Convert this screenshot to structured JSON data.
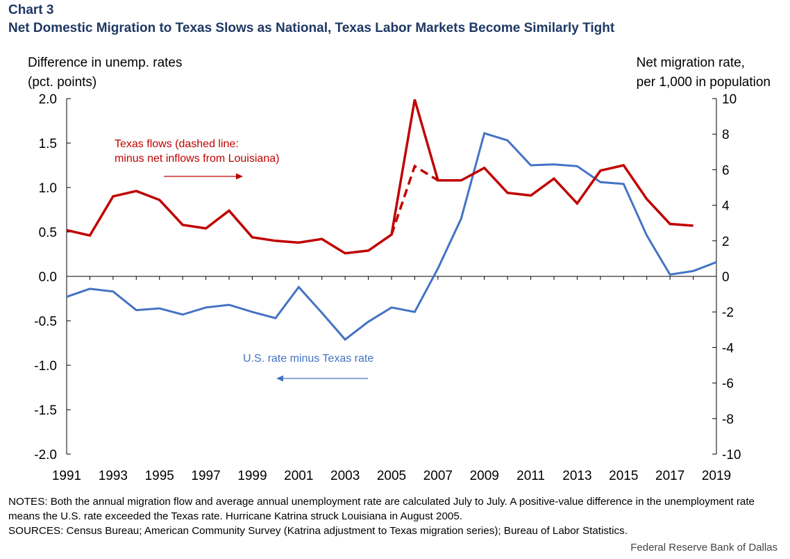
{
  "header": {
    "chart_number": "Chart 3",
    "title": "Net Domestic Migration to Texas Slows as National, Texas Labor Markets Become Similarly Tight"
  },
  "axis_labels": {
    "left_line1": "Difference in unemp. rates",
    "left_line2": "(pct. points)",
    "right_line1": "Net migration rate,",
    "right_line2": "per 1,000 in population"
  },
  "annotations": {
    "texas_line1": "Texas flows (dashed line:",
    "texas_line2": "minus net inflows from Louisiana)",
    "us_label": "U.S.  rate minus Texas rate"
  },
  "notes": {
    "notes_text": "NOTES: Both the annual migration flow and average annual unemployment  rate are calculated July to July. A positive-value difference in the unemployment  rate means the U.S. rate exceeded the Texas rate. Hurricane Katrina struck Louisiana in August 2005.",
    "sources_text": "SOURCES: Census Bureau; American Community Survey (Katrina adjustment to Texas migration series); Bureau of Labor Statistics."
  },
  "credit": "Federal Reserve Bank of Dallas",
  "colors": {
    "us_series": "#4472c4",
    "texas_series": "#c00000",
    "title": "#1f3864"
  },
  "chart_data": {
    "type": "line",
    "title": "Net Domestic Migration to Texas Slows as National, Texas Labor Markets Become Similarly Tight",
    "xlim": [
      1991,
      2019
    ],
    "x_tick_labels": [
      "1991",
      "1993",
      "1995",
      "1997",
      "1999",
      "2001",
      "2003",
      "2005",
      "2007",
      "2009",
      "2011",
      "2013",
      "2015",
      "2017",
      "2019"
    ],
    "left_axis": {
      "label": "Difference in unemp. rates (pct. points)",
      "ylim": [
        -2.0,
        2.0
      ],
      "ticks": [
        "2.0",
        "1.5",
        "1.0",
        "0.5",
        "0.0",
        "-0.5",
        "-1.0",
        "-1.5",
        "-2.0"
      ]
    },
    "right_axis": {
      "label": "Net migration rate, per 1,000 in population",
      "ylim": [
        -10,
        10
      ],
      "ticks": [
        "10",
        "8",
        "6",
        "4",
        "2",
        "0",
        "-2",
        "-4",
        "-6",
        "-8",
        "-10"
      ]
    },
    "series": [
      {
        "name": "U.S. rate minus Texas rate",
        "axis": "left",
        "style": "solid",
        "x": [
          1991,
          1992,
          1993,
          1994,
          1995,
          1996,
          1997,
          1998,
          1999,
          2000,
          2001,
          2002,
          2003,
          2004,
          2005,
          2006,
          2007,
          2008,
          2009,
          2010,
          2011,
          2012,
          2013,
          2014,
          2015,
          2016,
          2017,
          2018,
          2019
        ],
        "values": [
          -0.23,
          -0.14,
          -0.17,
          -0.38,
          -0.36,
          -0.43,
          -0.35,
          -0.32,
          -0.4,
          -0.47,
          -0.12,
          -0.41,
          -0.71,
          -0.51,
          -0.35,
          -0.4,
          0.09,
          0.65,
          1.61,
          1.53,
          1.25,
          1.26,
          1.24,
          1.06,
          1.04,
          0.46,
          0.02,
          0.06,
          0.16
        ]
      },
      {
        "name": "Texas flows",
        "axis": "right",
        "style": "solid",
        "x": [
          1991,
          1992,
          1993,
          1994,
          1995,
          1996,
          1997,
          1998,
          1999,
          2000,
          2001,
          2002,
          2003,
          2004,
          2005,
          2006,
          2007,
          2008,
          2009,
          2010,
          2011,
          2012,
          2013,
          2014,
          2015,
          2016,
          2017,
          2018
        ],
        "values": [
          2.6,
          2.3,
          4.5,
          4.8,
          4.3,
          2.9,
          2.7,
          3.7,
          2.2,
          2.0,
          1.9,
          2.1,
          1.3,
          1.45,
          2.35,
          9.95,
          5.4,
          5.4,
          6.1,
          4.7,
          4.55,
          5.5,
          4.1,
          5.95,
          6.25,
          4.35,
          2.95,
          2.85
        ]
      },
      {
        "name": "Texas flows minus net inflows from Louisiana",
        "axis": "right",
        "style": "dashed",
        "x": [
          2005,
          2006,
          2007
        ],
        "values": [
          2.35,
          6.2,
          5.4
        ]
      }
    ]
  }
}
